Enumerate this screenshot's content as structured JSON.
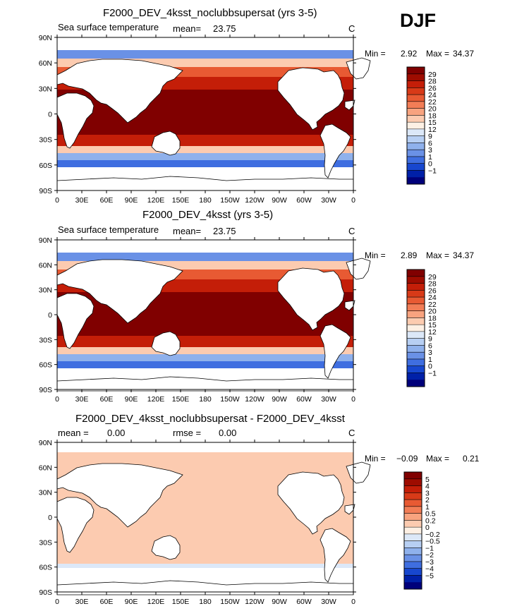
{
  "season": "DJF",
  "lon_labels": [
    "0",
    "30E",
    "60E",
    "90E",
    "120E",
    "150E",
    "180",
    "150W",
    "120W",
    "90W",
    "60W",
    "30W",
    "0"
  ],
  "lat_labels": [
    "90N",
    "60N",
    "30N",
    "0",
    "30S",
    "60S",
    "90S"
  ],
  "panels": [
    {
      "title": "F2000_DEV_4ksst_noclubbsupersat (yrs 3-5)",
      "left_label": "Sea surface temperature",
      "mean_label": "mean=",
      "mean_value": "23.75",
      "units": "C",
      "min_label": "Min =",
      "min_value": "2.92",
      "max_label": "Max =",
      "max_value": "34.37",
      "colorbar": {
        "labels": [
          "29",
          "28",
          "26",
          "24",
          "22",
          "20",
          "18",
          "15",
          "12",
          "9",
          "6",
          "3",
          "1",
          "0",
          "−1"
        ],
        "colors": [
          "#800000",
          "#9e0c00",
          "#c41e08",
          "#d83a18",
          "#e85a33",
          "#f27d56",
          "#f8a37f",
          "#fccbb0",
          "#fdf0e4",
          "#dce8f8",
          "#b7cff3",
          "#8fb1ec",
          "#6a91e6",
          "#3f6ee0",
          "#1747cf",
          "#0020a8",
          "#00007a"
        ]
      }
    },
    {
      "title": "F2000_DEV_4ksst (yrs 3-5)",
      "left_label": "Sea surface temperature",
      "mean_label": "mean=",
      "mean_value": "23.75",
      "units": "C",
      "min_label": "Min =",
      "min_value": "2.89",
      "max_label": "Max =",
      "max_value": "34.37",
      "colorbar": {
        "labels": [
          "29",
          "28",
          "26",
          "24",
          "22",
          "20",
          "18",
          "15",
          "12",
          "9",
          "6",
          "3",
          "1",
          "0",
          "−1"
        ],
        "colors": [
          "#800000",
          "#9e0c00",
          "#c41e08",
          "#d83a18",
          "#e85a33",
          "#f27d56",
          "#f8a37f",
          "#fccbb0",
          "#fdf0e4",
          "#dce8f8",
          "#b7cff3",
          "#8fb1ec",
          "#6a91e6",
          "#3f6ee0",
          "#1747cf",
          "#0020a8",
          "#00007a"
        ]
      }
    },
    {
      "title": "F2000_DEV_4ksst_noclubbsupersat - F2000_DEV_4ksst",
      "left_label": "mean =",
      "left_value": "0.00",
      "rmse_label": "rmse =",
      "rmse_value": "0.00",
      "units": "C",
      "min_label": "Min =",
      "min_value": "−0.09",
      "max_label": "Max =",
      "max_value": "0.21",
      "colorbar": {
        "labels": [
          "5",
          "4",
          "3",
          "2",
          "1",
          "0.5",
          "0.2",
          "0",
          "−0.2",
          "−0.5",
          "−1",
          "−2",
          "−3",
          "−4",
          "−5"
        ],
        "colors": [
          "#800000",
          "#9e0c00",
          "#c41e08",
          "#d83a18",
          "#e85a33",
          "#f27d56",
          "#f8a37f",
          "#fccbb0",
          "#fdf0e4",
          "#dce8f8",
          "#b7cff3",
          "#8fb1ec",
          "#6a91e6",
          "#3f6ee0",
          "#1747cf",
          "#0020a8",
          "#00007a"
        ]
      }
    }
  ]
}
